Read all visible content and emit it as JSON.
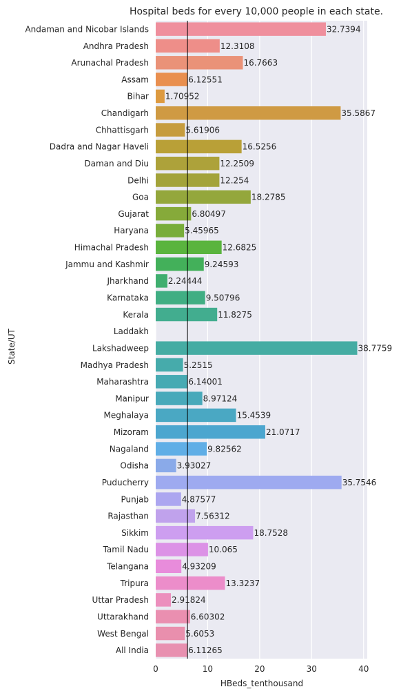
{
  "chart_data": {
    "type": "bar",
    "orientation": "horizontal",
    "title": "Hospital beds for every 10,000 people in each state.",
    "xlabel": "HBeds_tenthousand",
    "ylabel": "State/UT",
    "xlim": [
      0,
      40.7
    ],
    "xticks": [
      "0",
      "10",
      "20",
      "30",
      "40"
    ],
    "grid": true,
    "reference_line": 6.11265,
    "categories": [
      "Andaman and Nicobar Islands",
      "Andhra Pradesh",
      "Arunachal Pradesh",
      "Assam",
      "Bihar",
      "Chandigarh",
      "Chhattisgarh",
      "Dadra and Nagar Haveli",
      "Daman and Diu",
      "Delhi",
      "Goa",
      "Gujarat",
      "Haryana",
      "Himachal Pradesh",
      "Jammu and Kashmir",
      "Jharkhand",
      "Karnataka",
      "Kerala",
      "Laddakh",
      "Lakshadweep",
      "Madhya Pradesh",
      "Maharashtra",
      "Manipur",
      "Meghalaya",
      "Mizoram",
      "Nagaland",
      "Odisha",
      "Puducherry",
      "Punjab",
      "Rajasthan",
      "Sikkim",
      "Tamil Nadu",
      "Telangana",
      "Tripura",
      "Uttar Pradesh",
      "Uttarakhand",
      "West Bengal",
      "All India"
    ],
    "values": [
      32.7394,
      12.3108,
      16.7663,
      6.12551,
      1.70952,
      35.5867,
      5.61906,
      16.5256,
      12.2509,
      12.254,
      18.2785,
      6.80497,
      5.45965,
      12.6825,
      9.24593,
      2.24444,
      9.50796,
      11.8275,
      null,
      38.7759,
      5.2515,
      6.14001,
      8.97124,
      15.4539,
      21.0717,
      9.82562,
      3.93027,
      35.7546,
      4.87577,
      7.56312,
      18.7528,
      10.065,
      4.93209,
      13.3237,
      2.91824,
      6.60302,
      5.6053,
      6.11265
    ],
    "value_labels": [
      "32.7394",
      "12.3108",
      "16.7663",
      "6.12551",
      "1.70952",
      "35.5867",
      "5.61906",
      "16.5256",
      "12.2509",
      "12.254",
      "18.2785",
      "6.80497",
      "5.45965",
      "12.6825",
      "9.24593",
      "2.24444",
      "9.50796",
      "11.8275",
      "",
      "38.7759",
      "5.2515",
      "6.14001",
      "8.97124",
      "15.4539",
      "21.0717",
      "9.82562",
      "3.93027",
      "35.7546",
      "4.87577",
      "7.56312",
      "18.7528",
      "10.065",
      "4.93209",
      "13.3237",
      "2.91824",
      "6.60302",
      "5.6053",
      "6.11265"
    ],
    "colors": [
      "#ef8f9d",
      "#ee8e89",
      "#ea9278",
      "#e98f4f",
      "#dd9a40",
      "#cf9a43",
      "#c69c3e",
      "#b9a037",
      "#ada23a",
      "#a3a33a",
      "#94a73c",
      "#86aa3a",
      "#78ad3a",
      "#5ab43e",
      "#43b05a",
      "#3fae6f",
      "#40ae83",
      "#42ad8f",
      "#44ac9a",
      "#45aca3",
      "#46abab",
      "#47aab3",
      "#48a9ba",
      "#4aa8c3",
      "#4ca6cf",
      "#60aee6",
      "#8aaae9",
      "#9eaaf0",
      "#aca6f0",
      "#c0a2ec",
      "#cd9ef0",
      "#dc92e6",
      "#e88cdb",
      "#ec8dca",
      "#ec8fbd",
      "#ea8fb0",
      "#e98fad",
      "#e890b0"
    ],
    "background_color": "#eaeaf2",
    "grid_color": "#ffffff"
  }
}
